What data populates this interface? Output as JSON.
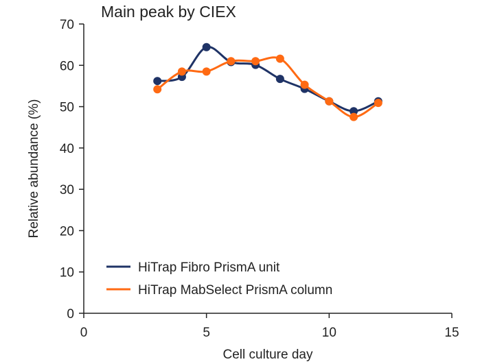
{
  "chart_data": {
    "type": "line",
    "title": "Main peak by CIEX",
    "xlabel": "Cell culture day",
    "ylabel": "Relative abundance (%)",
    "xlim": [
      0,
      15
    ],
    "ylim": [
      0,
      70
    ],
    "xticks": [
      0,
      5,
      10,
      15
    ],
    "yticks": [
      0,
      10,
      20,
      30,
      40,
      50,
      60,
      70
    ],
    "grid": false,
    "legend_position": "bottom-left",
    "series": [
      {
        "name": "HiTrap Fibro PrismA unit",
        "color": "#1f3366",
        "x": [
          3,
          4,
          5,
          6,
          7,
          8,
          9,
          10,
          11,
          12
        ],
        "y": [
          56.2,
          57.2,
          64.4,
          60.8,
          60.1,
          56.7,
          54.3,
          51.3,
          48.9,
          51.3
        ]
      },
      {
        "name": "HiTrap MabSelect PrismA column",
        "color": "#ff6a13",
        "x": [
          3,
          4,
          5,
          6,
          7,
          8,
          9,
          10,
          11,
          12
        ],
        "y": [
          54.2,
          58.5,
          58.5,
          61.0,
          61.0,
          61.6,
          55.3,
          51.3,
          47.5,
          50.9
        ]
      }
    ]
  }
}
